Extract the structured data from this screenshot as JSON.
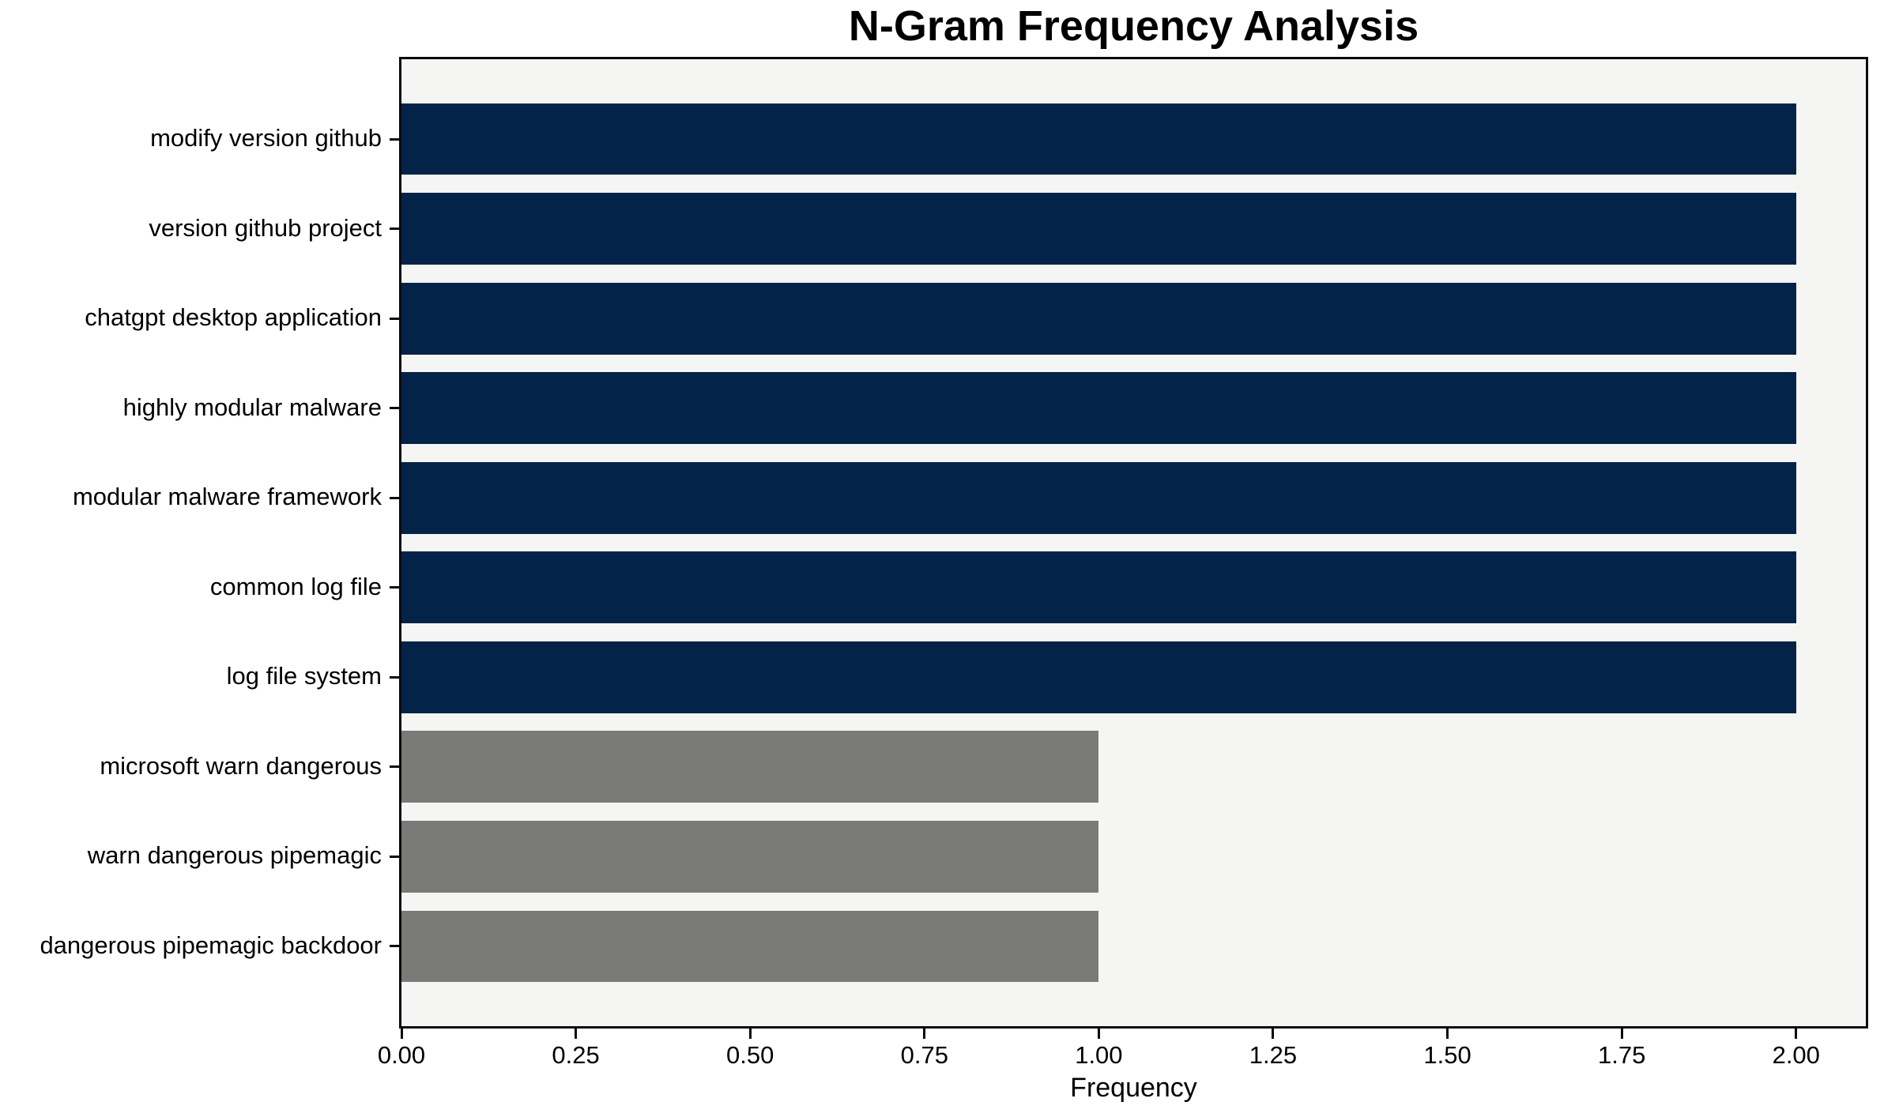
{
  "chart_data": {
    "type": "bar",
    "orientation": "horizontal",
    "title": "N-Gram Frequency Analysis",
    "xlabel": "Frequency",
    "ylabel": "",
    "categories": [
      "modify version github",
      "version github project",
      "chatgpt desktop application",
      "highly modular malware",
      "modular malware framework",
      "common log file",
      "log file system",
      "microsoft warn dangerous",
      "warn dangerous pipemagic",
      "dangerous pipemagic backdoor"
    ],
    "values": [
      2,
      2,
      2,
      2,
      2,
      2,
      2,
      1,
      1,
      1
    ],
    "bar_colors": [
      "#042349",
      "#042349",
      "#042349",
      "#042349",
      "#042349",
      "#042349",
      "#042349",
      "#7A7A78",
      "#7A7A78",
      "#7A7A78"
    ],
    "xlim": [
      0,
      2.1
    ],
    "xticks": [
      "0.00",
      "0.25",
      "0.50",
      "0.75",
      "1.00",
      "1.25",
      "1.50",
      "1.75",
      "2.00"
    ],
    "xtick_values": [
      0,
      0.25,
      0.5,
      0.75,
      1.0,
      1.25,
      1.5,
      1.75,
      2.0
    ],
    "grid": false,
    "legend": null
  },
  "colors": {
    "navy": "#042349",
    "gray": "#7A7A78",
    "frame": "#0a0a0a",
    "plot_background": "#F5F5F4",
    "page_background": "#FFFFFF",
    "text": "#000000"
  }
}
